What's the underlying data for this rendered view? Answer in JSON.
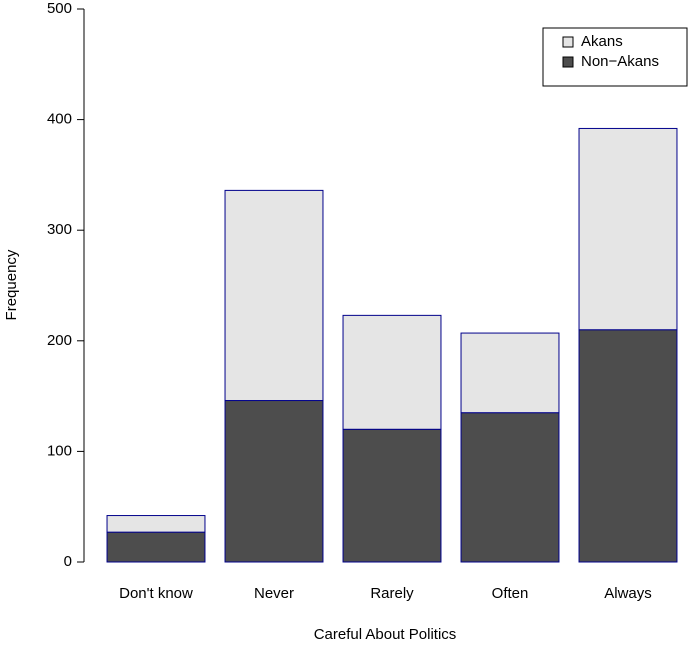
{
  "chart_data": {
    "type": "stacked_bar",
    "x_label": "Careful About Politics",
    "y_label": "Frequency",
    "categories": [
      "Don't know",
      "Never",
      "Rarely",
      "Often",
      "Always"
    ],
    "series": [
      {
        "name": "Non−Akans",
        "color": "#4d4d4d",
        "values": [
          27,
          146,
          120,
          135,
          210
        ]
      },
      {
        "name": "Akans",
        "color": "#e5e5e5",
        "values": [
          15,
          190,
          103,
          72,
          182
        ]
      }
    ],
    "bar_edge_color": "#00008b",
    "ylim": [
      0,
      500
    ],
    "yticks": [
      0,
      100,
      200,
      300,
      400,
      500
    ],
    "legend": "topright"
  }
}
